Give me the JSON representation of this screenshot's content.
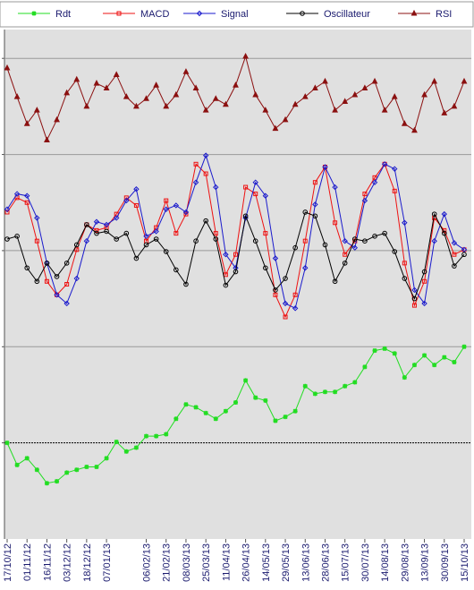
{
  "chart_data": {
    "type": "line",
    "categories": [
      "17/10/12",
      null,
      "01/11/12",
      null,
      "16/11/12",
      null,
      "03/12/12",
      null,
      "18/12/12",
      null,
      "07/01/13",
      null,
      null,
      null,
      "06/02/13",
      null,
      "21/02/13",
      null,
      "08/03/13",
      null,
      "25/03/13",
      null,
      "11/04/13",
      null,
      "26/04/13",
      null,
      "14/05/13",
      null,
      "29/05/13",
      null,
      "13/06/13",
      null,
      "28/06/13",
      null,
      "15/07/13",
      null,
      "30/07/13",
      null,
      "14/08/13",
      null,
      "29/08/13",
      null,
      "13/09/13",
      null,
      "30/09/13",
      null,
      "15/10/13"
    ],
    "series": [
      {
        "name": "Rdt",
        "color": "#22dd22",
        "marker": "star",
        "values": [
          0,
          -0.23,
          -0.16,
          -0.28,
          -0.42,
          -0.4,
          -0.31,
          -0.28,
          -0.25,
          -0.25,
          -0.16,
          0.01,
          -0.09,
          -0.05,
          0.07,
          0.07,
          0.09,
          0.25,
          0.4,
          0.37,
          0.31,
          0.25,
          0.33,
          0.42,
          0.65,
          0.47,
          0.44,
          0.23,
          0.27,
          0.33,
          0.59,
          0.51,
          0.53,
          0.53,
          0.59,
          0.63,
          0.79,
          0.96,
          0.98,
          0.93,
          0.68,
          0.81,
          0.91,
          0.81,
          0.89,
          0.84,
          1.0
        ]
      },
      {
        "name": "MACD",
        "color": "#ee1111",
        "marker": "square",
        "values": [
          2.4,
          2.55,
          2.5,
          2.1,
          1.68,
          1.54,
          1.65,
          2.01,
          2.27,
          2.21,
          2.24,
          2.38,
          2.55,
          2.47,
          2.1,
          2.24,
          2.52,
          2.18,
          2.38,
          2.9,
          2.8,
          2.18,
          1.75,
          1.96,
          2.66,
          2.59,
          2.18,
          1.54,
          1.31,
          1.54,
          2.1,
          2.71,
          2.87,
          2.29,
          1.96,
          2.1,
          2.59,
          2.76,
          2.9,
          2.62,
          1.87,
          1.43,
          1.68,
          2.34,
          2.21,
          1.96,
          2.01
        ]
      },
      {
        "name": "Signal",
        "color": "#1a1acc",
        "marker": "diamond",
        "values": [
          2.43,
          2.59,
          2.57,
          2.34,
          1.87,
          1.54,
          1.45,
          1.71,
          2.1,
          2.3,
          2.27,
          2.34,
          2.52,
          2.64,
          2.15,
          2.2,
          2.43,
          2.47,
          2.4,
          2.71,
          2.99,
          2.66,
          1.96,
          1.82,
          2.34,
          2.71,
          2.57,
          1.92,
          1.45,
          1.4,
          1.82,
          2.48,
          2.87,
          2.66,
          2.1,
          2.03,
          2.52,
          2.71,
          2.9,
          2.85,
          2.29,
          1.59,
          1.45,
          2.1,
          2.38,
          2.08,
          2.01
        ]
      },
      {
        "name": "Oscillateur",
        "color": "#000000",
        "marker": "circle",
        "values": [
          2.12,
          2.15,
          1.82,
          1.68,
          1.87,
          1.73,
          1.87,
          2.06,
          2.27,
          2.18,
          2.2,
          2.12,
          2.18,
          1.92,
          2.06,
          2.12,
          1.99,
          1.8,
          1.65,
          2.1,
          2.31,
          2.12,
          1.64,
          1.78,
          2.36,
          2.1,
          1.82,
          1.59,
          1.71,
          2.03,
          2.4,
          2.36,
          2.06,
          1.68,
          1.87,
          2.12,
          2.1,
          2.15,
          2.18,
          1.99,
          1.71,
          1.5,
          1.78,
          2.38,
          2.18,
          1.84,
          1.96
        ]
      },
      {
        "name": "RSI",
        "color": "#8b1010",
        "marker": "triangle",
        "values": [
          3.9,
          3.6,
          3.32,
          3.46,
          3.15,
          3.36,
          3.64,
          3.78,
          3.5,
          3.74,
          3.69,
          3.83,
          3.6,
          3.5,
          3.58,
          3.72,
          3.5,
          3.62,
          3.86,
          3.69,
          3.46,
          3.58,
          3.52,
          3.72,
          4.02,
          3.62,
          3.46,
          3.27,
          3.36,
          3.52,
          3.6,
          3.69,
          3.76,
          3.46,
          3.55,
          3.62,
          3.69,
          3.76,
          3.46,
          3.6,
          3.32,
          3.25,
          3.62,
          3.76,
          3.43,
          3.5,
          3.76
        ]
      }
    ],
    "ylim": [
      -1,
      4.3
    ],
    "yticks": [
      0,
      1,
      2,
      3,
      4
    ],
    "grid": true,
    "legend": "top"
  }
}
